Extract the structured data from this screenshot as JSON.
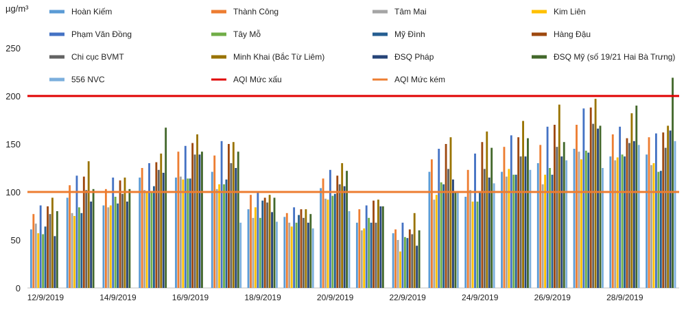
{
  "chart_data": {
    "type": "bar",
    "y_unit": "µg/m³",
    "ylim": [
      0,
      250
    ],
    "yticks": [
      0,
      50,
      100,
      150,
      200,
      250
    ],
    "grid": false,
    "legend_position": "top",
    "dates": [
      "12/9/2019",
      "13/9/2019",
      "14/9/2019",
      "15/9/2019",
      "16/9/2019",
      "17/9/2019",
      "18/9/2019",
      "19/9/2019",
      "20/9/2019",
      "21/9/2019",
      "22/9/2019",
      "23/9/2019",
      "24/9/2019",
      "25/9/2019",
      "26/9/2019",
      "27/9/2019",
      "28/9/2019",
      "29/9/2019"
    ],
    "x_tick_labels": [
      "12/9/2019",
      "14/9/2019",
      "16/9/2019",
      "18/9/2019",
      "20/9/2019",
      "22/9/2019",
      "24/9/2019",
      "26/9/2019",
      "28/9/2019"
    ],
    "series": [
      {
        "name": "Hoàn Kiếm",
        "color": "#5b9bd5",
        "values": [
          61,
          94,
          86,
          115,
          115,
          121,
          82,
          74,
          104,
          68,
          57,
          121,
          95,
          121,
          130,
          145,
          137,
          139
        ]
      },
      {
        "name": "Thành Công",
        "color": "#ed7d31",
        "values": [
          77,
          107,
          103,
          125,
          142,
          138,
          97,
          78,
          114,
          82,
          61,
          134,
          123,
          147,
          149,
          170,
          160,
          157
        ]
      },
      {
        "name": "Tâm Mai",
        "color": "#a5a5a5",
        "values": [
          67,
          78,
          84,
          102,
          116,
          103,
          73,
          68,
          93,
          60,
          50,
          92,
          102,
          116,
          108,
          142,
          133,
          128
        ]
      },
      {
        "name": "Kim Liên",
        "color": "#ffc000",
        "values": [
          57,
          75,
          86,
          100,
          113,
          108,
          84,
          64,
          92,
          62,
          38,
          97,
          90,
          124,
          118,
          134,
          136,
          130
        ]
      },
      {
        "name": "Phạm Văn Đồng",
        "color": "#4472c4",
        "values": [
          86,
          117,
          115,
          130,
          148,
          153,
          101,
          84,
          123,
          86,
          68,
          145,
          140,
          159,
          168,
          187,
          168,
          161
        ]
      },
      {
        "name": "Tây Mỗ",
        "color": "#70ad47",
        "values": [
          56,
          84,
          95,
          101,
          114,
          108,
          73,
          68,
          96,
          73,
          53,
          110,
          90,
          118,
          125,
          143,
          139,
          121
        ]
      },
      {
        "name": "Mỹ Đình",
        "color": "#255e91",
        "values": [
          64,
          78,
          88,
          106,
          114,
          113,
          91,
          76,
          98,
          68,
          52,
          108,
          100,
          118,
          118,
          141,
          137,
          122
        ]
      },
      {
        "name": "Hàng Đậu",
        "color": "#9e480e",
        "values": [
          85,
          116,
          112,
          131,
          151,
          150,
          94,
          82,
          117,
          91,
          61,
          150,
          152,
          157,
          170,
          188,
          156,
          162
        ]
      },
      {
        "name": "Chi cục BVMT",
        "color": "#636363",
        "values": [
          77,
          102,
          98,
          123,
          139,
          130,
          89,
          73,
          108,
          68,
          56,
          124,
          124,
          137,
          147,
          171,
          151,
          146
        ]
      },
      {
        "name": "Minh Khai (Bắc Từ Liêm)",
        "color": "#997300",
        "values": [
          94,
          132,
          115,
          140,
          160,
          152,
          97,
          82,
          130,
          92,
          78,
          157,
          163,
          174,
          191,
          197,
          182,
          169
        ]
      },
      {
        "name": "ĐSQ Pháp",
        "color": "#264478",
        "values": [
          54,
          90,
          90,
          120,
          139,
          125,
          79,
          68,
          106,
          85,
          44,
          113,
          115,
          137,
          137,
          166,
          153,
          164
        ]
      },
      {
        "name": "ĐSQ Mỹ (số 19/21 Hai Bà Trưng)",
        "color": "#43682b",
        "values": [
          80,
          103,
          103,
          167,
          142,
          142,
          94,
          77,
          122,
          85,
          60,
          99,
          146,
          156,
          152,
          169,
          190,
          219
        ]
      },
      {
        "name": "556 NVC",
        "color": "#7cafdd",
        "values": [
          null,
          null,
          null,
          null,
          null,
          68,
          69,
          62,
          80,
          null,
          null,
          101,
          109,
          123,
          133,
          125,
          149,
          153
        ]
      }
    ],
    "reference_lines": [
      {
        "name": "AQI Mức xấu",
        "value": 200,
        "color": "#e00000"
      },
      {
        "name": "AQI Mức kém",
        "value": 100,
        "color": "#ed7d31"
      }
    ]
  }
}
